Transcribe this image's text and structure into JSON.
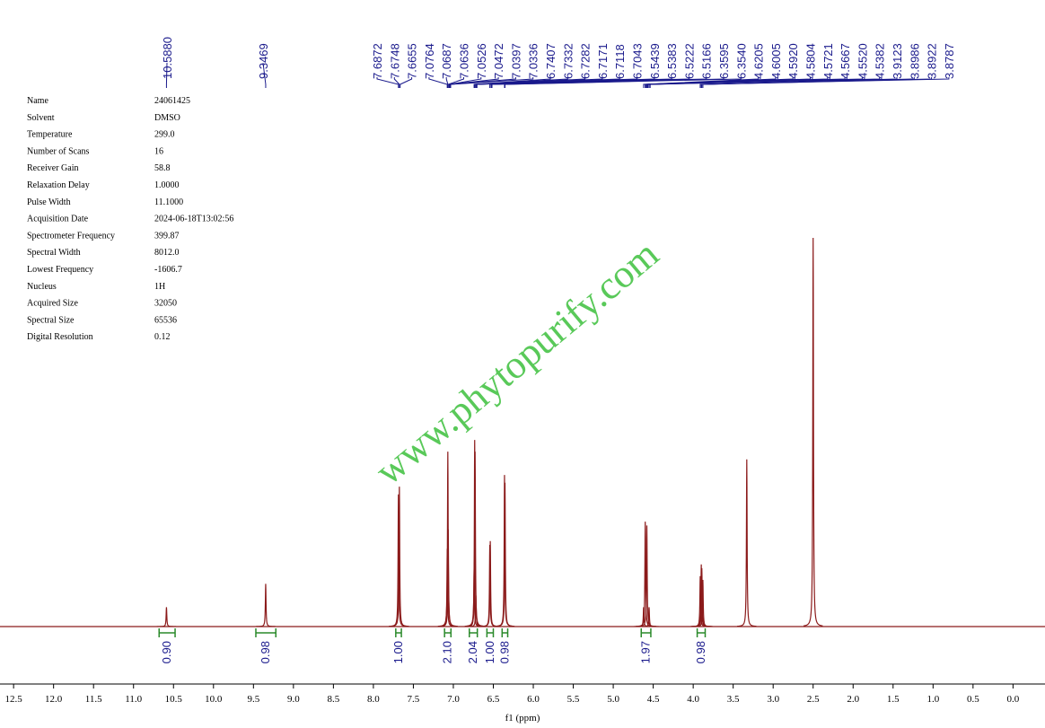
{
  "chart_data": {
    "type": "nmr",
    "x_label": "f1 (ppm)",
    "watermark": "www.phytopurify.com",
    "xlim": [
      12.67,
      -0.4
    ],
    "ylim": [
      0,
      100
    ],
    "xticks": [
      {
        "value": 12.5,
        "label": "12.5"
      },
      {
        "value": 12,
        "label": "12.0"
      },
      {
        "value": 11.5,
        "label": "11.5"
      },
      {
        "value": 11,
        "label": "11.0"
      },
      {
        "value": 10.5,
        "label": "10.5"
      },
      {
        "value": 10,
        "label": "10.0"
      },
      {
        "value": 9.5,
        "label": "9.5"
      },
      {
        "value": 9,
        "label": "9.0"
      },
      {
        "value": 8.5,
        "label": "8.5"
      },
      {
        "value": 8,
        "label": "8.0"
      },
      {
        "value": 7.5,
        "label": "7.5"
      },
      {
        "value": 7,
        "label": "7.0"
      },
      {
        "value": 6.5,
        "label": "6.5"
      },
      {
        "value": 6,
        "label": "6.0"
      },
      {
        "value": 5.5,
        "label": "5.5"
      },
      {
        "value": 5,
        "label": "5.0"
      },
      {
        "value": 4.5,
        "label": "4.5"
      },
      {
        "value": 4,
        "label": "4.0"
      },
      {
        "value": 3.5,
        "label": "3.5"
      },
      {
        "value": 3,
        "label": "3.0"
      },
      {
        "value": 2.5,
        "label": "2.5"
      },
      {
        "value": 2,
        "label": "2.0"
      },
      {
        "value": 1.5,
        "label": "1.5"
      },
      {
        "value": 1,
        "label": "1.0"
      },
      {
        "value": 0.5,
        "label": "0.5"
      },
      {
        "value": 0,
        "label": "0.0"
      }
    ],
    "spectrum": {
      "color": "#8b1a1a",
      "x": [
        10.588,
        9.347,
        7.687,
        7.675,
        7.076,
        7.069,
        7.064,
        6.74,
        6.733,
        6.728,
        6.718,
        6.544,
        6.538,
        6.36,
        6.354,
        4.62,
        4.6,
        4.58,
        4.552,
        3.912,
        3.899,
        3.892,
        3.879,
        3.33,
        2.5
      ],
      "values": [
        5,
        11,
        34,
        36,
        20,
        45,
        25,
        15,
        48,
        45,
        8,
        21,
        22,
        39,
        37,
        5,
        27,
        26,
        5,
        13,
        16,
        15,
        12,
        43,
        100
      ]
    },
    "peak_labels": [
      {
        "value": 10.588,
        "label": "10.5880"
      },
      {
        "value": 9.3469,
        "label": "9.3469"
      },
      {
        "value": 7.6872,
        "label": "7.6872"
      },
      {
        "value": 7.6748,
        "label": "7.6748"
      },
      {
        "value": 7.6655,
        "label": "7.6655"
      },
      {
        "value": 7.0764,
        "label": "7.0764"
      },
      {
        "value": 7.0687,
        "label": "7.0687"
      },
      {
        "value": 7.0636,
        "label": "7.0636"
      },
      {
        "value": 7.0526,
        "label": "7.0526"
      },
      {
        "value": 7.0472,
        "label": "7.0472"
      },
      {
        "value": 7.0397,
        "label": "7.0397"
      },
      {
        "value": 7.0336,
        "label": "7.0336"
      },
      {
        "value": 6.7407,
        "label": "6.7407"
      },
      {
        "value": 6.7332,
        "label": "6.7332"
      },
      {
        "value": 6.7282,
        "label": "6.7282"
      },
      {
        "value": 6.7171,
        "label": "6.7171"
      },
      {
        "value": 6.7118,
        "label": "6.7118"
      },
      {
        "value": 6.7043,
        "label": "6.7043"
      },
      {
        "value": 6.5439,
        "label": "6.5439"
      },
      {
        "value": 6.5383,
        "label": "6.5383"
      },
      {
        "value": 6.5222,
        "label": "6.5222"
      },
      {
        "value": 6.5166,
        "label": "6.5166"
      },
      {
        "value": 6.3595,
        "label": "6.3595"
      },
      {
        "value": 6.354,
        "label": "6.3540"
      },
      {
        "value": 4.6205,
        "label": "4.6205"
      },
      {
        "value": 4.6005,
        "label": "4.6005"
      },
      {
        "value": 4.592,
        "label": "4.5920"
      },
      {
        "value": 4.5804,
        "label": "4.5804"
      },
      {
        "value": 4.5721,
        "label": "4.5721"
      },
      {
        "value": 4.5667,
        "label": "4.5667"
      },
      {
        "value": 4.552,
        "label": "4.5520"
      },
      {
        "value": 4.5382,
        "label": "4.5382"
      },
      {
        "value": 3.9123,
        "label": "3.9123"
      },
      {
        "value": 3.8986,
        "label": "3.8986"
      },
      {
        "value": 3.8922,
        "label": "3.8922"
      },
      {
        "value": 3.8787,
        "label": "3.8787"
      }
    ],
    "integrals": {
      "color": "#2a8a2a",
      "from": [
        10.68,
        9.47,
        7.72,
        7.11,
        6.8,
        6.58,
        6.39,
        4.65,
        3.95
      ],
      "to": [
        10.48,
        9.22,
        7.65,
        7.03,
        6.7,
        6.5,
        6.32,
        4.53,
        3.85
      ],
      "values": [
        0.9,
        0.98,
        1,
        2.1,
        2.04,
        1,
        0.98,
        1.97,
        0.98
      ],
      "value_labels": [
        "0.90",
        "0.98",
        "1.00",
        "2.10",
        "2.04",
        "1.00",
        "0.98",
        "1.97",
        "0.98"
      ]
    },
    "parameters": [
      [
        "Name",
        "24061425"
      ],
      [
        "Solvent",
        "DMSO"
      ],
      [
        "Temperature",
        "299.0"
      ],
      [
        "Number of Scans",
        "16"
      ],
      [
        "Receiver Gain",
        "58.8"
      ],
      [
        "Relaxation Delay",
        "1.0000"
      ],
      [
        "Pulse Width",
        "11.1000"
      ],
      [
        "Acquisition Date",
        "2024-06-18T13:02:56"
      ],
      [
        "Spectrometer Frequency",
        "399.87"
      ],
      [
        "Spectral Width",
        "8012.0"
      ],
      [
        "Lowest Frequency",
        "-1606.7"
      ],
      [
        "Nucleus",
        "1H"
      ],
      [
        "Acquired Size",
        "32050"
      ],
      [
        "Spectral Size",
        "65536"
      ],
      [
        "Digital Resolution",
        "0.12"
      ]
    ]
  }
}
